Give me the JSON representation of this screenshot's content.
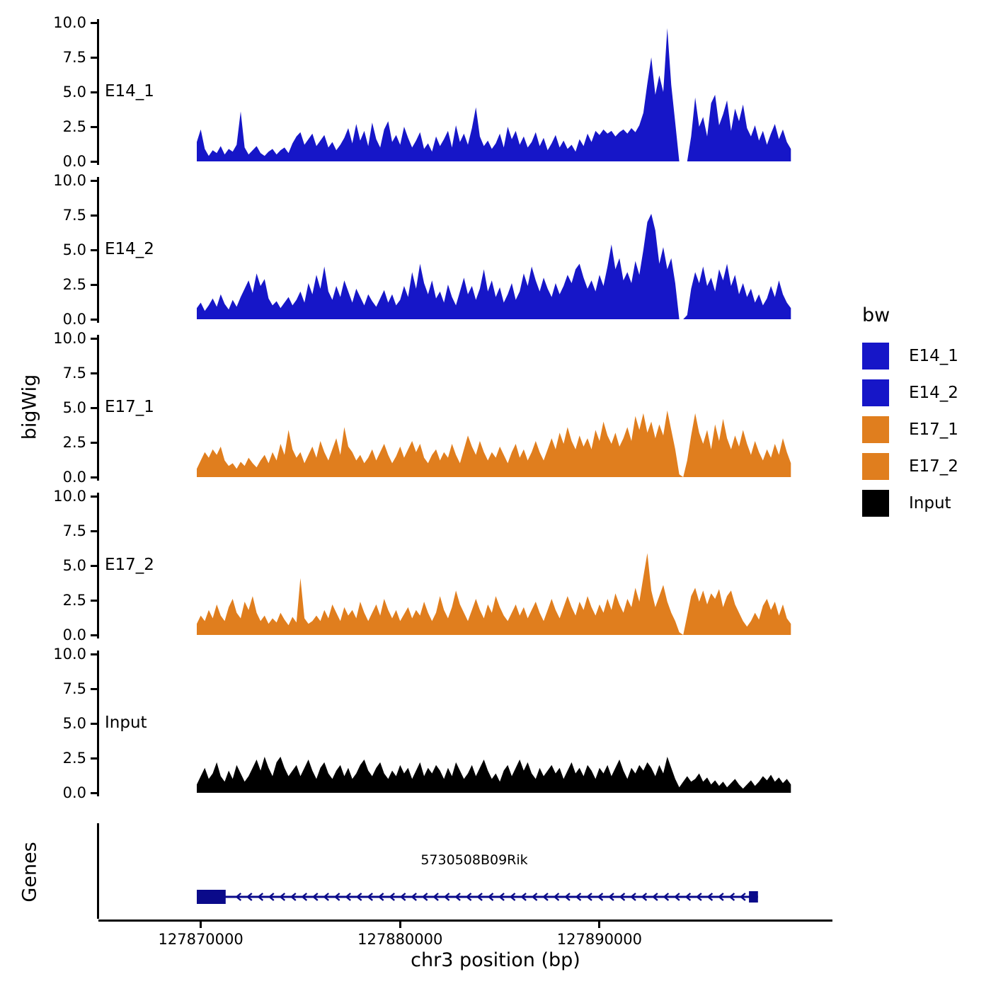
{
  "labels": {
    "bigwig_axis": "bigWig",
    "genes_axis": "Genes",
    "x_axis_title": "chr3 position (bp)"
  },
  "colors": {
    "blue": "#1616C8",
    "orange": "#E07E1E",
    "black": "#000000",
    "gene": "#0A0A8A",
    "axis": "#000000"
  },
  "y_ticks": [
    {
      "value": 10,
      "label": "10.0"
    },
    {
      "value": 7.5,
      "label": "7.5"
    },
    {
      "value": 5,
      "label": "5.0"
    },
    {
      "value": 2.5,
      "label": "2.5"
    },
    {
      "value": 0,
      "label": "0.0"
    }
  ],
  "x_ticks": [
    {
      "value": 127870000,
      "label": "127870000"
    },
    {
      "value": 127880000,
      "label": "127880000"
    },
    {
      "value": 127890000,
      "label": "127890000"
    }
  ],
  "legend": {
    "title": "bw",
    "items": [
      {
        "label": "E14_1",
        "color": "#1616C8"
      },
      {
        "label": "E14_2",
        "color": "#1616C8"
      },
      {
        "label": "E17_1",
        "color": "#E07E1E"
      },
      {
        "label": "E17_2",
        "color": "#E07E1E"
      },
      {
        "label": "Input",
        "color": "#000000"
      }
    ]
  },
  "gene": {
    "name": "5730508B09Rik",
    "strand": "-",
    "start": 127869800,
    "end": 127897950,
    "exons": [
      {
        "start": 127869800,
        "end": 127871250,
        "height": 20
      },
      {
        "start": 127897500,
        "end": 127897950,
        "height": 16
      }
    ],
    "arrow_start": 127871800,
    "arrow_end": 127897100,
    "arrow_step": 550
  },
  "chart_data": {
    "type": "area",
    "title": "",
    "xlabel": "chr3 position (bp)",
    "ylabel": "bigWig",
    "ylim": [
      0,
      10
    ],
    "xlim": [
      127864900,
      127901650
    ],
    "x_start": 127869800,
    "x_step": 200,
    "legend_position": "right",
    "grid": false,
    "series": [
      {
        "name": "E14_1",
        "color": "#1616C8",
        "values": [
          1.4,
          2.3,
          0.9,
          0.4,
          0.8,
          0.6,
          1.1,
          0.5,
          0.9,
          0.7,
          1.2,
          3.6,
          1.0,
          0.5,
          0.8,
          1.1,
          0.6,
          0.4,
          0.7,
          0.9,
          0.5,
          0.8,
          1.0,
          0.6,
          1.3,
          1.8,
          2.1,
          1.2,
          1.6,
          2.0,
          1.1,
          1.5,
          1.9,
          1.0,
          1.4,
          0.8,
          1.2,
          1.7,
          2.4,
          1.3,
          2.7,
          1.5,
          2.2,
          1.1,
          2.8,
          1.6,
          1.0,
          2.3,
          2.9,
          1.4,
          1.9,
          1.2,
          2.5,
          1.7,
          1.0,
          1.5,
          2.1,
          0.9,
          1.3,
          0.7,
          1.8,
          1.1,
          1.6,
          2.2,
          1.0,
          2.6,
          1.4,
          2.0,
          1.2,
          2.4,
          3.9,
          1.8,
          1.1,
          1.5,
          0.9,
          1.3,
          2.0,
          1.0,
          2.5,
          1.6,
          2.2,
          1.2,
          1.8,
          1.0,
          1.4,
          2.1,
          1.1,
          1.7,
          0.8,
          1.3,
          1.9,
          1.0,
          1.5,
          0.9,
          1.2,
          0.7,
          1.6,
          1.1,
          2.0,
          1.4,
          2.2,
          1.9,
          2.3,
          2.0,
          2.2,
          1.8,
          2.1,
          2.3,
          2.0,
          2.4,
          2.1,
          2.6,
          3.5,
          5.6,
          7.5,
          4.8,
          6.2,
          5.0,
          9.6,
          5.5,
          2.8,
          0.0,
          0.0,
          0.0,
          1.8,
          4.6,
          2.5,
          3.2,
          1.8,
          4.2,
          4.8,
          2.6,
          3.4,
          4.4,
          2.2,
          3.8,
          2.9,
          4.1,
          2.4,
          1.8,
          2.6,
          1.5,
          2.2,
          1.2,
          2.0,
          2.7,
          1.6,
          2.3,
          1.4,
          0.9
        ]
      },
      {
        "name": "E14_2",
        "color": "#1616C8",
        "values": [
          0.8,
          1.2,
          0.6,
          1.0,
          1.5,
          0.9,
          1.8,
          1.1,
          0.7,
          1.4,
          0.9,
          1.6,
          2.2,
          2.8,
          1.9,
          3.3,
          2.4,
          2.9,
          1.5,
          1.0,
          1.3,
          0.8,
          1.2,
          1.6,
          1.0,
          1.4,
          2.0,
          1.2,
          2.6,
          1.8,
          3.2,
          2.2,
          3.8,
          2.0,
          1.4,
          2.4,
          1.6,
          2.8,
          2.0,
          1.2,
          2.2,
          1.6,
          1.0,
          1.8,
          1.3,
          0.9,
          1.5,
          2.1,
          1.2,
          1.8,
          1.0,
          1.4,
          2.4,
          1.6,
          3.4,
          2.2,
          4.0,
          2.6,
          1.8,
          2.8,
          1.5,
          2.0,
          1.2,
          2.5,
          1.6,
          1.0,
          2.0,
          3.0,
          1.8,
          2.4,
          1.4,
          2.2,
          3.6,
          2.0,
          2.8,
          1.6,
          2.3,
          1.2,
          1.8,
          2.6,
          1.4,
          2.0,
          3.3,
          2.4,
          3.8,
          2.8,
          2.0,
          3.0,
          2.2,
          1.6,
          2.6,
          1.8,
          2.4,
          3.2,
          2.6,
          3.6,
          4.0,
          3.0,
          2.2,
          2.8,
          2.0,
          3.2,
          2.4,
          3.8,
          5.4,
          3.6,
          4.4,
          2.8,
          3.4,
          2.6,
          4.2,
          3.2,
          5.0,
          7.0,
          7.6,
          6.4,
          4.0,
          5.2,
          3.6,
          4.4,
          2.6,
          0.0,
          0.0,
          0.3,
          2.2,
          3.4,
          2.6,
          3.8,
          2.4,
          3.0,
          2.0,
          3.6,
          2.8,
          4.0,
          2.4,
          3.2,
          1.8,
          2.6,
          1.6,
          2.2,
          1.2,
          1.8,
          1.0,
          1.5,
          2.4,
          1.6,
          2.8,
          1.8,
          1.2,
          0.8
        ]
      },
      {
        "name": "E17_1",
        "color": "#E07E1E",
        "values": [
          0.6,
          1.2,
          1.8,
          1.4,
          2.0,
          1.6,
          2.2,
          1.2,
          0.8,
          1.0,
          0.6,
          1.1,
          0.8,
          1.4,
          1.0,
          0.7,
          1.2,
          1.6,
          1.0,
          1.8,
          1.2,
          2.4,
          1.6,
          3.4,
          2.0,
          1.4,
          1.8,
          1.0,
          1.6,
          2.2,
          1.4,
          2.6,
          1.8,
          1.2,
          2.0,
          2.8,
          1.6,
          3.6,
          2.2,
          1.8,
          1.2,
          1.6,
          1.0,
          1.4,
          2.0,
          1.2,
          1.8,
          2.4,
          1.6,
          1.0,
          1.5,
          2.2,
          1.4,
          2.0,
          2.6,
          1.8,
          2.4,
          1.4,
          1.0,
          1.6,
          2.0,
          1.2,
          1.8,
          1.4,
          2.4,
          1.6,
          1.0,
          2.0,
          3.0,
          2.2,
          1.6,
          2.6,
          1.8,
          1.2,
          1.8,
          1.4,
          2.2,
          1.6,
          1.0,
          1.8,
          2.4,
          1.4,
          2.0,
          1.2,
          1.8,
          2.6,
          1.8,
          1.2,
          2.0,
          2.8,
          2.0,
          3.2,
          2.4,
          3.6,
          2.6,
          2.0,
          3.0,
          2.2,
          2.8,
          2.0,
          3.4,
          2.6,
          4.0,
          3.0,
          2.4,
          3.2,
          2.2,
          2.8,
          3.6,
          2.6,
          4.4,
          3.4,
          4.6,
          3.2,
          4.0,
          2.8,
          3.8,
          3.0,
          4.8,
          3.4,
          2.0,
          0.2,
          0.0,
          1.2,
          3.0,
          4.6,
          3.2,
          2.4,
          3.4,
          2.0,
          3.8,
          2.6,
          4.2,
          2.8,
          2.0,
          3.0,
          2.2,
          3.4,
          2.4,
          1.6,
          2.6,
          1.8,
          1.2,
          2.0,
          1.4,
          2.4,
          1.6,
          2.8,
          1.8,
          1.0
        ]
      },
      {
        "name": "E17_2",
        "color": "#E07E1E",
        "values": [
          0.8,
          1.4,
          1.0,
          1.8,
          1.2,
          2.2,
          1.4,
          1.0,
          2.0,
          2.6,
          1.6,
          1.2,
          2.4,
          1.8,
          2.8,
          1.6,
          1.0,
          1.4,
          0.8,
          1.2,
          0.9,
          1.6,
          1.1,
          0.7,
          1.3,
          0.9,
          4.1,
          1.2,
          0.8,
          1.0,
          1.4,
          1.0,
          1.8,
          1.2,
          2.2,
          1.6,
          1.0,
          2.0,
          1.4,
          1.8,
          1.2,
          2.4,
          1.6,
          1.0,
          1.6,
          2.2,
          1.4,
          2.6,
          1.8,
          1.2,
          1.8,
          1.0,
          1.5,
          2.0,
          1.2,
          1.8,
          1.4,
          2.4,
          1.6,
          1.0,
          1.6,
          2.8,
          1.8,
          1.2,
          2.0,
          3.2,
          2.2,
          1.6,
          1.0,
          1.8,
          2.6,
          1.8,
          1.2,
          2.2,
          1.6,
          2.8,
          2.0,
          1.4,
          1.0,
          1.6,
          2.2,
          1.4,
          2.0,
          1.2,
          1.8,
          2.4,
          1.6,
          1.0,
          1.8,
          2.6,
          1.8,
          1.2,
          2.0,
          2.8,
          2.0,
          1.4,
          2.4,
          1.8,
          2.8,
          2.0,
          1.4,
          2.2,
          1.6,
          2.6,
          1.8,
          3.0,
          2.2,
          1.6,
          2.6,
          2.0,
          3.4,
          2.4,
          4.2,
          5.9,
          3.2,
          2.0,
          2.8,
          3.6,
          2.4,
          1.6,
          1.0,
          0.2,
          0.0,
          1.4,
          2.8,
          3.4,
          2.4,
          3.2,
          2.2,
          3.0,
          2.6,
          3.3,
          2.0,
          2.8,
          3.2,
          2.2,
          1.6,
          1.0,
          0.6,
          1.0,
          1.6,
          1.1,
          2.1,
          2.6,
          1.8,
          2.4,
          1.4,
          2.2,
          1.2,
          0.8
        ]
      },
      {
        "name": "Input",
        "color": "#000000",
        "values": [
          0.6,
          1.2,
          1.8,
          1.0,
          1.4,
          2.2,
          1.2,
          0.8,
          1.6,
          1.0,
          2.0,
          1.4,
          0.8,
          1.2,
          1.8,
          2.4,
          1.6,
          2.6,
          1.8,
          1.2,
          2.2,
          2.6,
          1.8,
          1.2,
          1.6,
          2.0,
          1.2,
          1.8,
          2.4,
          1.6,
          1.0,
          1.8,
          2.2,
          1.4,
          1.0,
          1.6,
          2.0,
          1.2,
          1.8,
          1.0,
          1.4,
          2.0,
          2.4,
          1.6,
          1.2,
          1.8,
          2.2,
          1.4,
          1.0,
          1.6,
          1.2,
          2.0,
          1.4,
          1.8,
          1.0,
          1.6,
          2.2,
          1.2,
          1.8,
          1.4,
          2.0,
          1.6,
          1.0,
          1.8,
          1.2,
          2.2,
          1.6,
          1.0,
          1.4,
          2.0,
          1.2,
          1.8,
          2.4,
          1.6,
          1.0,
          1.4,
          0.8,
          1.6,
          2.0,
          1.2,
          1.8,
          2.4,
          1.6,
          2.2,
          1.4,
          1.0,
          1.8,
          1.2,
          1.6,
          2.0,
          1.4,
          1.8,
          1.0,
          1.6,
          2.2,
          1.4,
          1.8,
          1.2,
          2.0,
          1.6,
          1.0,
          1.8,
          1.4,
          2.0,
          1.2,
          1.8,
          2.4,
          1.6,
          1.0,
          1.8,
          1.4,
          2.0,
          1.6,
          2.2,
          1.8,
          1.2,
          2.0,
          1.4,
          2.6,
          1.8,
          1.0,
          0.4,
          0.8,
          1.2,
          0.8,
          1.0,
          1.4,
          0.8,
          1.1,
          0.6,
          0.9,
          0.5,
          0.8,
          0.4,
          0.7,
          1.0,
          0.6,
          0.3,
          0.6,
          0.9,
          0.5,
          0.8,
          1.2,
          0.9,
          1.3,
          0.8,
          1.1,
          0.7,
          1.0,
          0.6
        ]
      }
    ]
  }
}
